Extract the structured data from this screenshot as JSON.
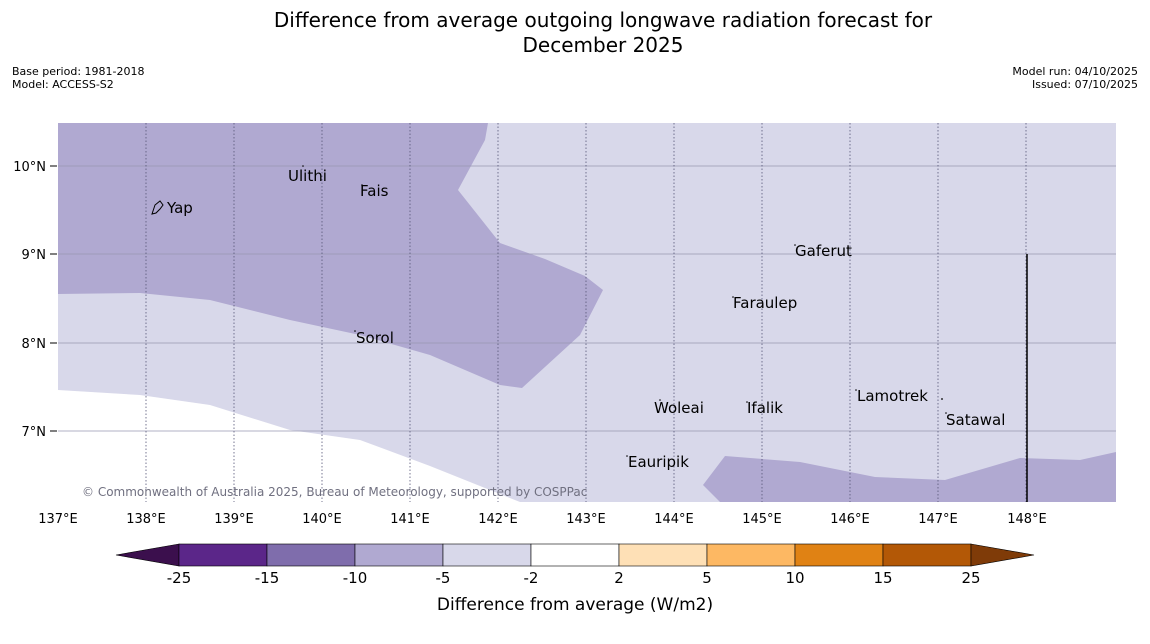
{
  "title": {
    "line1": "Difference from average outgoing longwave radiation forecast for",
    "line2": "December 2025"
  },
  "meta": {
    "base_period": "Base period: 1981-2018",
    "model": "Model: ACCESS-S2",
    "model_run": "Model run: 04/10/2025",
    "issued": "Issued: 07/10/2025"
  },
  "map": {
    "lat_labels": [
      "10°N",
      "9°N",
      "8°N",
      "7°N"
    ],
    "lon_labels": [
      "137°E",
      "138°E",
      "139°E",
      "140°E",
      "141°E",
      "142°E",
      "143°E",
      "144°E",
      "145°E",
      "146°E",
      "147°E",
      "148°E"
    ],
    "places": [
      {
        "name": "Yap"
      },
      {
        "name": "Ulithi"
      },
      {
        "name": "Fais"
      },
      {
        "name": "Gaferut"
      },
      {
        "name": "Faraulep"
      },
      {
        "name": "Sorol"
      },
      {
        "name": "Lamotrek"
      },
      {
        "name": "Woleai"
      },
      {
        "name": "Ifalik"
      },
      {
        "name": "Satawal"
      },
      {
        "name": "Eauripik"
      }
    ],
    "copyright": "© Commonwealth of Australia 2025, Bureau of Meteorology, supported by COSPPac"
  },
  "legend": {
    "title": "Difference from average (W/m2)",
    "tick_labels": [
      "-25",
      "-15",
      "-10",
      "-5",
      "-2",
      "2",
      "5",
      "10",
      "15",
      "25"
    ],
    "colors": [
      "#3b0f4d",
      "#5b2689",
      "#7f6dac",
      "#b0a9d1",
      "#d8d8ea",
      "#ffffff",
      "#fee0b6",
      "#fdb863",
      "#e08214",
      "#b35806",
      "#7f3b08"
    ]
  }
}
